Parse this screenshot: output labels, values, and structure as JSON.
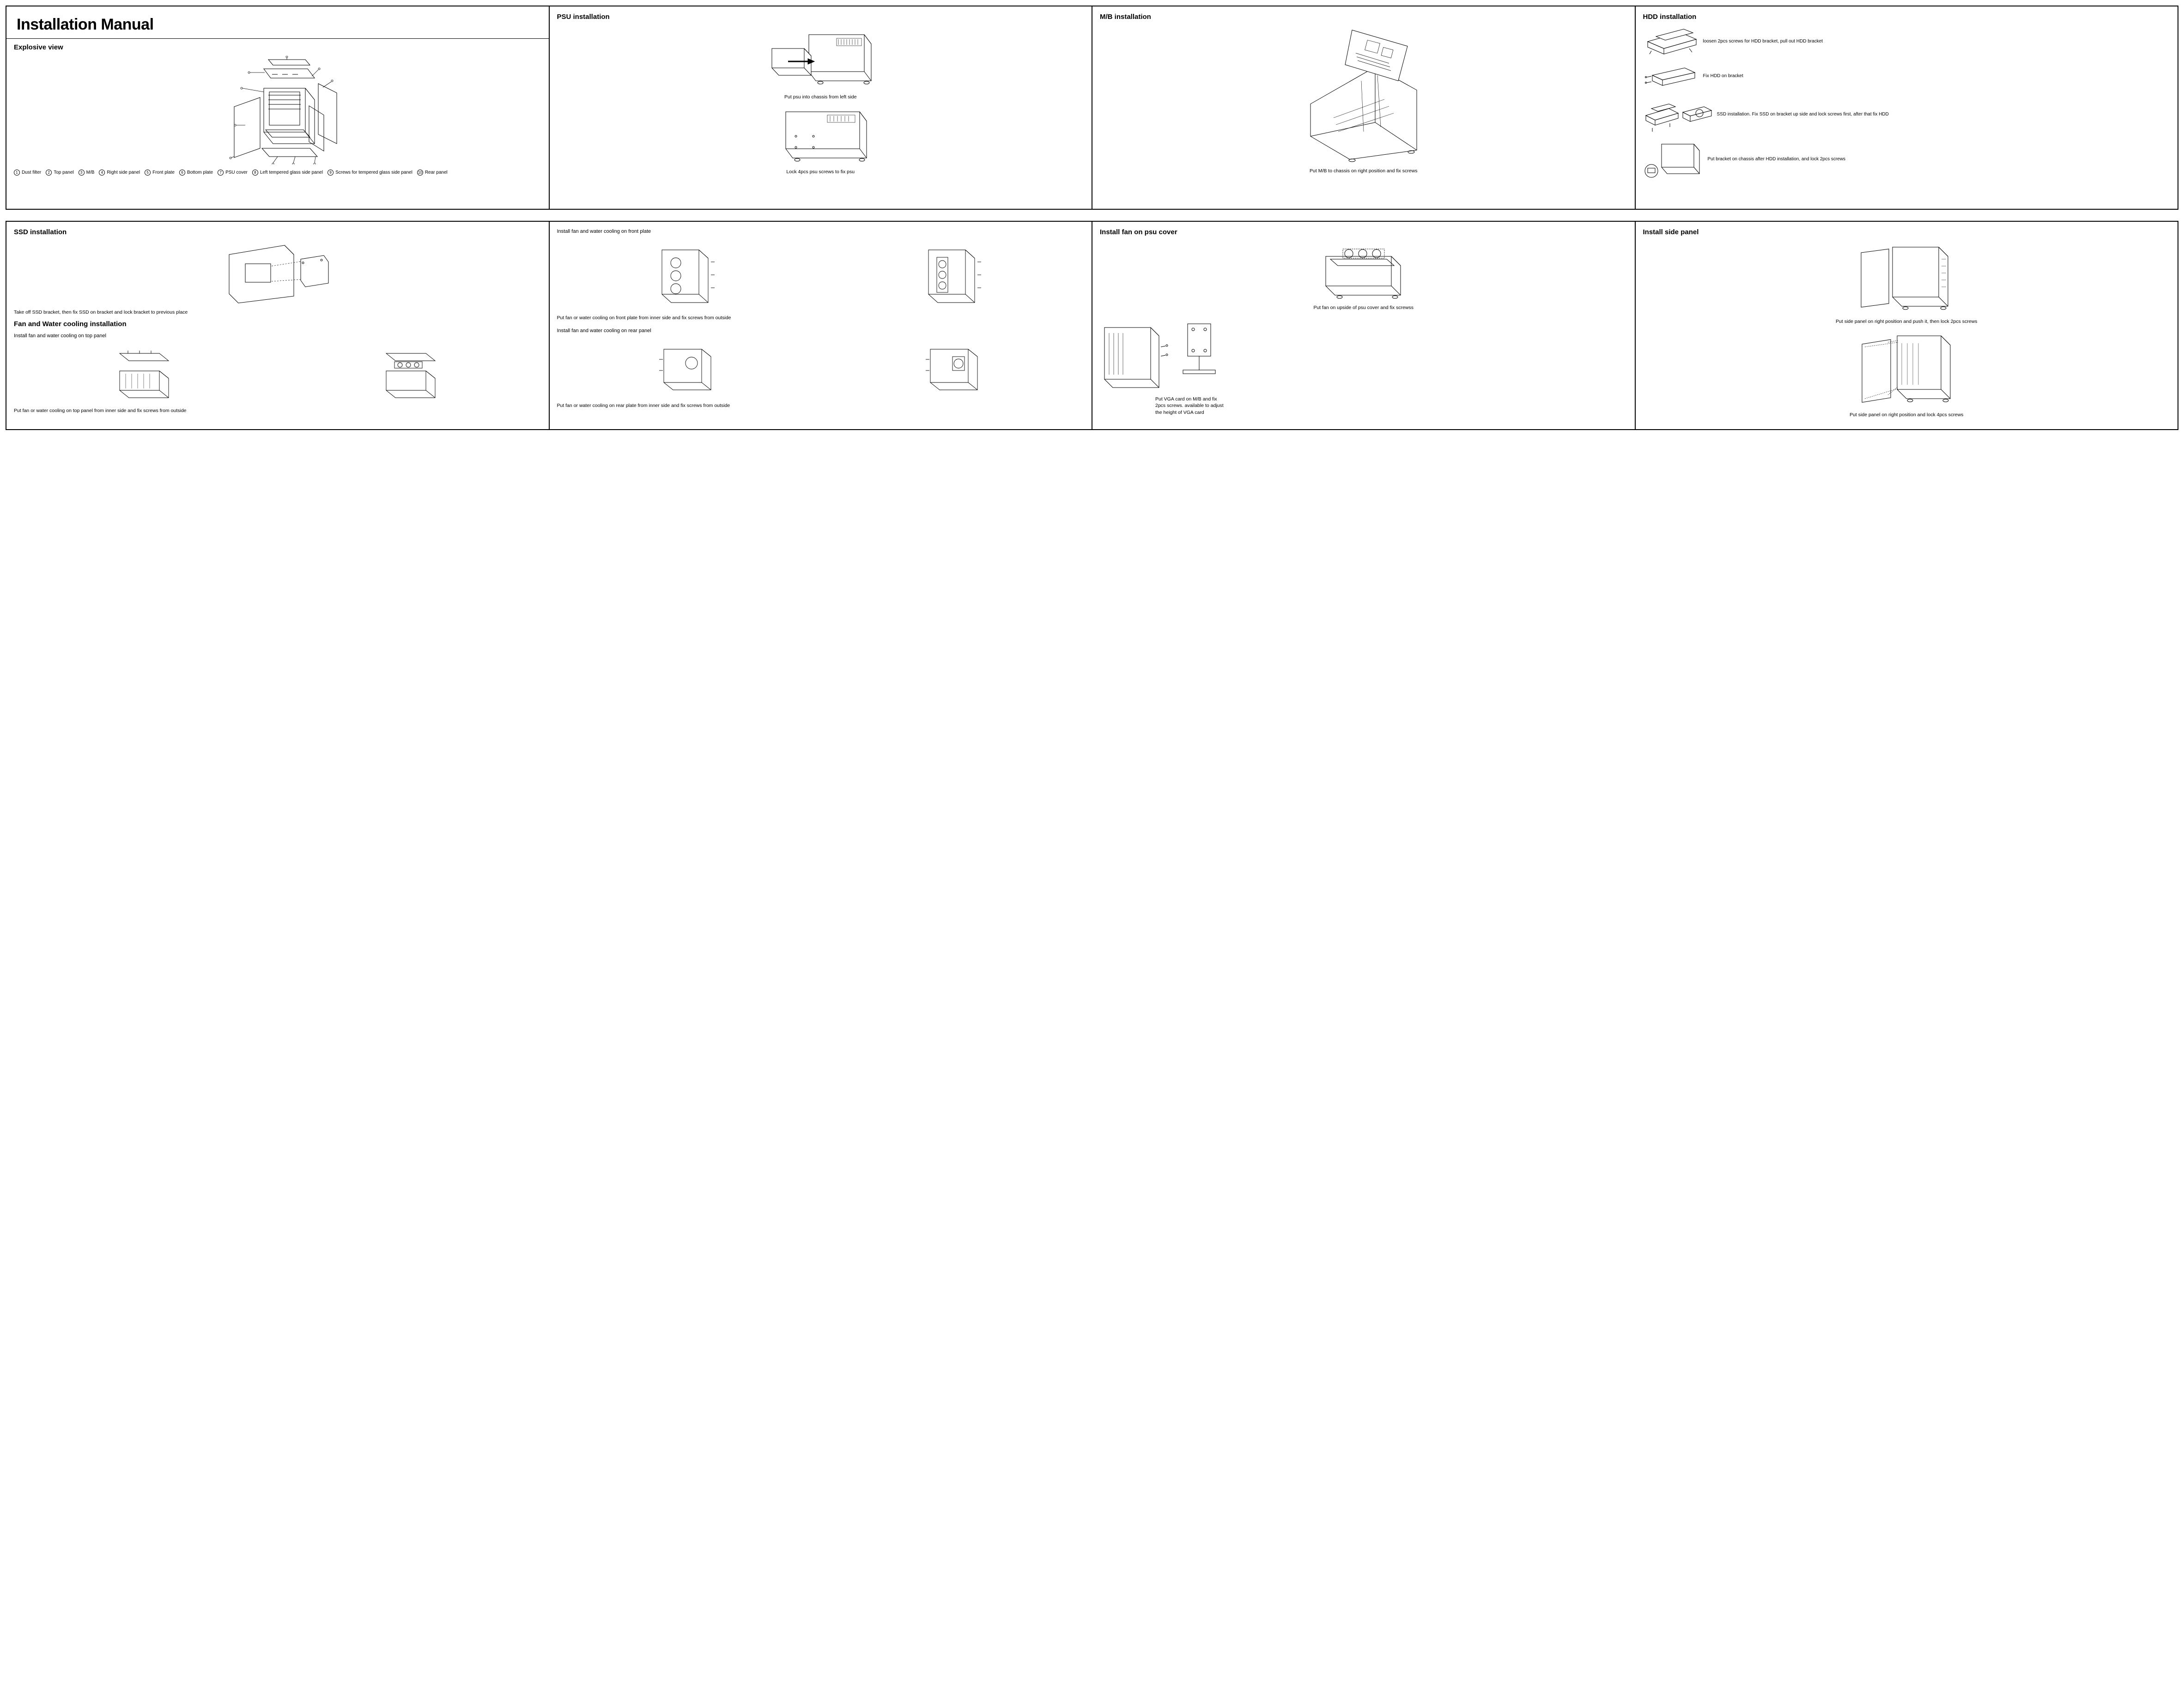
{
  "colors": {
    "stroke": "#000000",
    "bg": "#ffffff"
  },
  "title": "Installation Manual",
  "explosive": {
    "heading": "Explosive view",
    "legend": [
      {
        "n": "1",
        "label": "Dust filter"
      },
      {
        "n": "2",
        "label": "Top panel"
      },
      {
        "n": "3",
        "label": "M/B"
      },
      {
        "n": "4",
        "label": "Right side panel"
      },
      {
        "n": "5",
        "label": "Front plate"
      },
      {
        "n": "6",
        "label": "Bottom plate"
      },
      {
        "n": "7",
        "label": "PSU cover"
      },
      {
        "n": "8",
        "label": "Left tempered glass side panel"
      },
      {
        "n": "9",
        "label": "Screws for tempered glass side panel"
      },
      {
        "n": "10",
        "label": "Rear panel"
      }
    ]
  },
  "psu": {
    "heading": "PSU installation",
    "step1": "Put psu into chassis from left side",
    "step2": "Lock 4pcs psu screws to fix psu"
  },
  "mb": {
    "heading": "M/B installation",
    "caption": "Put M/B to chassis on right position and fix screws"
  },
  "hdd": {
    "heading": "HDD installation",
    "s1": "loosen 2pcs screws for HDD bracket, pull out HDD bracket",
    "s2": "Fix HDD on bracket",
    "s3": "SSD installation. Fix SSD on bracket up side and lock screws first, after that fix HDD",
    "s4": "Put bracket on chassis after HDD installation, and lock 2pcs screws"
  },
  "ssd": {
    "heading": "SSD installation",
    "caption": "Take off SSD bracket, then fix SSD on bracket and lock bracket to previous place"
  },
  "fan": {
    "heading": "Fan and Water cooling installation",
    "top_sub": "Install fan and water cooling on top panel",
    "top_caption": "Put fan or water cooling on top panel from inner side and fix screws from outside",
    "front_sub": "Install fan and water cooling on front plate",
    "front_caption": "Put fan or water cooling on front plate from inner side and fix screws from outside",
    "rear_sub": "Install fan and water cooling on rear panel",
    "rear_caption": "Put fan or water cooling on rear plate from inner side and fix screws from outside"
  },
  "psucover": {
    "heading": "Install fan on psu cover",
    "s1": "Put fan on upside of psu cover and fix screwss",
    "s2": "Put VGA card on M/B and fix 2pcs screws. available to adjust the height of VGA card"
  },
  "sidepanel": {
    "heading": "Install side panel",
    "s1": "Put side panel on right position and push it, then lock 2pcs screws",
    "s2": "Put side panel on right position and lock 4pcs screws"
  }
}
